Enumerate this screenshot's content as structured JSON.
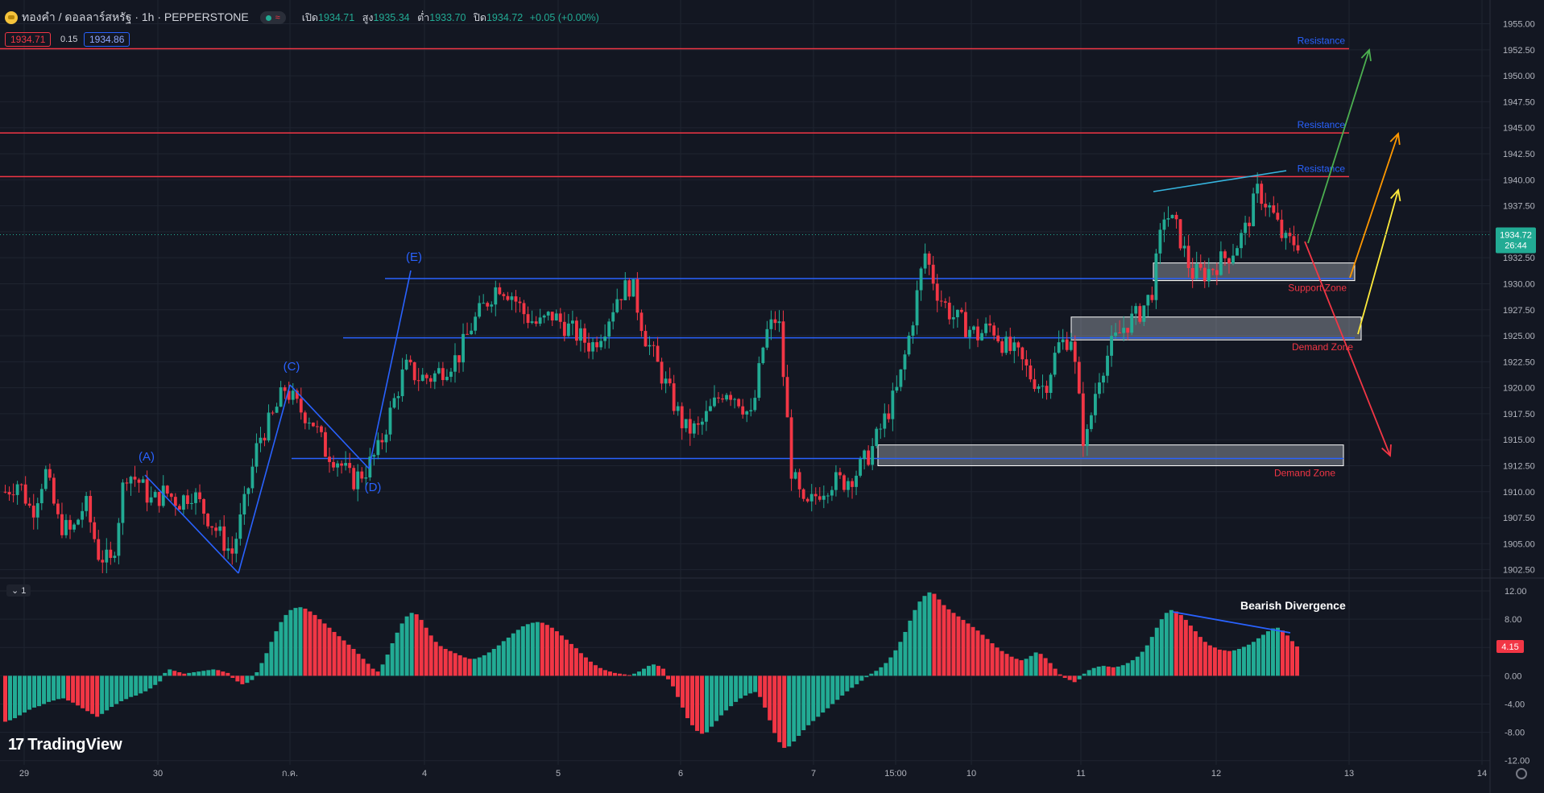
{
  "header": {
    "symbol": "ทองคำ / ดอลลาร์สหรัฐ · 1h · PEPPERSTONE",
    "open_label": "เปิด",
    "open": "1934.71",
    "high_label": "สูง",
    "high": "1935.34",
    "low_label": "ต่ำ",
    "low": "1933.70",
    "close_label": "ปิด",
    "close": "1934.72",
    "change": "+0.05 (+0.00%)",
    "bid": "1934.71",
    "spread": "0.15",
    "ask": "1934.86"
  },
  "pane_toggle": "⌄ 1",
  "logo_text": "TradingView",
  "colors": {
    "bull": "#22ab94",
    "bear": "#f23645",
    "background": "#131722",
    "grid": "#1f2430"
  },
  "chart_data": [
    {
      "type": "candlestick",
      "symbol": "XAUUSD",
      "timeframe": "1h",
      "x_ticks": [
        "29",
        "30",
        "ก.ค.",
        "4",
        "5",
        "6",
        "7",
        "15:00",
        "10",
        "11",
        "12",
        "13",
        "14"
      ],
      "y_ticks": [
        "1955.00",
        "1952.50",
        "1950.00",
        "1947.50",
        "1945.00",
        "1942.50",
        "1940.00",
        "1937.50",
        "1935.00",
        "1932.50",
        "1930.00",
        "1927.50",
        "1925.00",
        "1922.50",
        "1920.00",
        "1917.50",
        "1915.00",
        "1912.50",
        "1910.00",
        "1907.50",
        "1905.00",
        "1902.50"
      ],
      "ylim": [
        1901.7,
        1956.9
      ],
      "last_price": "1934.72",
      "countdown": "26:44",
      "approx_close_path": [
        1910,
        1911,
        1908,
        1912,
        1907,
        1906,
        1909,
        1904,
        1903,
        1912,
        1911,
        1909,
        1910,
        1909,
        1910,
        1908,
        1906,
        1904,
        1909,
        1915,
        1917,
        1920,
        1918,
        1917,
        1914,
        1913,
        1911,
        1912,
        1914,
        1918,
        1922,
        1921,
        1921,
        1922,
        1923,
        1926,
        1928,
        1930,
        1929,
        1927,
        1926,
        1927,
        1926,
        1925,
        1924,
        1926,
        1929,
        1930,
        1925,
        1922,
        1919,
        1916,
        1916,
        1918,
        1920,
        1919,
        1917,
        1925,
        1927,
        1912,
        1908,
        1910,
        1911,
        1911,
        1912,
        1914,
        1917,
        1920,
        1926,
        1933,
        1929,
        1927,
        1926,
        1925,
        1926,
        1924,
        1923,
        1921,
        1920,
        1924,
        1925,
        1914,
        1921,
        1924,
        1926,
        1927,
        1929,
        1937,
        1935,
        1931,
        1931,
        1932,
        1933,
        1935,
        1939,
        1937,
        1934,
        1934
      ],
      "annotations": {
        "resistance_levels": [
          1952.6,
          1944.5,
          1940.3
        ],
        "resistance_labels": [
          "Resistance",
          "Resistance",
          "Resistance"
        ],
        "support_zone": {
          "label": "Support Zone",
          "range": [
            1930.3,
            1932.0
          ]
        },
        "demand_zones": [
          {
            "label": "Demand Zone",
            "range": [
              1924.6,
              1926.8
            ]
          },
          {
            "label": "Demand Zone",
            "range": [
              1912.5,
              1914.5
            ]
          }
        ],
        "horizontal_lines": [
          1930.5,
          1924.8,
          1913.2
        ],
        "wave_labels": [
          "(A)",
          "(C)",
          "(D)",
          "(E)"
        ]
      }
    },
    {
      "type": "bar",
      "name": "Histogram oscillator",
      "y_ticks": [
        "12.00",
        "8.00",
        "4.00",
        "0.00",
        "-4.00",
        "-8.00",
        "-12.00"
      ],
      "ylim": [
        -12.6,
        13.6
      ],
      "last_value": "4.15",
      "annotation": "Bearish Divergence",
      "values": [
        -6.5,
        -6.3,
        -6,
        -5.6,
        -5.2,
        -4.8,
        -4.5,
        -4.3,
        -4.0,
        -3.7,
        -3.5,
        -3.3,
        -3.2,
        -3.5,
        -3.8,
        -4.2,
        -4.6,
        -5.0,
        -5.4,
        -5.8,
        -5.4,
        -4.9,
        -4.4,
        -4.0,
        -3.6,
        -3.3,
        -3.0,
        -2.8,
        -2.5,
        -2.2,
        -1.8,
        -1.3,
        -0.8,
        0.4,
        0.9,
        0.7,
        0.5,
        0.3,
        0.4,
        0.5,
        0.6,
        0.7,
        0.8,
        0.9,
        0.8,
        0.6,
        0.4,
        -0.3,
        -0.8,
        -1.2,
        -1.0,
        -0.6,
        0.5,
        1.8,
        3.2,
        4.8,
        6.3,
        7.6,
        8.6,
        9.3,
        9.6,
        9.7,
        9.5,
        9.1,
        8.6,
        8.0,
        7.4,
        6.8,
        6.2,
        5.6,
        5.0,
        4.4,
        3.8,
        3.1,
        2.4,
        1.7,
        1.0,
        0.6,
        1.6,
        3.0,
        4.6,
        6.1,
        7.4,
        8.4,
        8.9,
        8.7,
        7.9,
        6.8,
        5.7,
        4.8,
        4.2,
        3.8,
        3.5,
        3.2,
        2.9,
        2.6,
        2.4,
        2.4,
        2.6,
        2.9,
        3.3,
        3.8,
        4.3,
        4.9,
        5.4,
        6.0,
        6.5,
        7.0,
        7.3,
        7.5,
        7.6,
        7.5,
        7.2,
        6.8,
        6.3,
        5.7,
        5.1,
        4.5,
        3.9,
        3.2,
        2.6,
        2.0,
        1.5,
        1.1,
        0.8,
        0.6,
        0.4,
        0.3,
        0.2,
        0.1,
        0.3,
        0.6,
        1.0,
        1.4,
        1.6,
        1.4,
        1.0,
        -0.5,
        -1.5,
        -3.0,
        -4.5,
        -6.0,
        -7.0,
        -7.8,
        -8.2,
        -8.0,
        -7.2,
        -6.4,
        -5.6,
        -4.9,
        -4.3,
        -3.7,
        -3.2,
        -2.8,
        -2.5,
        -2.3,
        -3.0,
        -4.5,
        -6.3,
        -8.1,
        -9.4,
        -10.2,
        -10.0,
        -9.3,
        -8.5,
        -7.7,
        -7.0,
        -6.4,
        -5.8,
        -5.2,
        -4.6,
        -4.0,
        -3.4,
        -2.8,
        -2.2,
        -1.7,
        -1.2,
        -0.7,
        -0.2,
        0.3,
        0.7,
        1.2,
        1.8,
        2.6,
        3.6,
        4.8,
        6.2,
        7.8,
        9.3,
        10.5,
        11.3,
        11.8,
        11.6,
        10.8,
        10.0,
        9.4,
        8.9,
        8.4,
        7.9,
        7.4,
        6.9,
        6.4,
        5.8,
        5.2,
        4.6,
        4.0,
        3.5,
        3.1,
        2.7,
        2.4,
        2.2,
        2.4,
        2.8,
        3.3,
        3.1,
        2.5,
        1.8,
        1.0,
        0.2,
        -0.3,
        -0.6,
        -0.9,
        -0.5,
        0.3,
        0.8,
        1.1,
        1.3,
        1.4,
        1.3,
        1.2,
        1.3,
        1.5,
        1.8,
        2.2,
        2.7,
        3.4,
        4.3,
        5.5,
        6.8,
        8.0,
        8.9,
        9.3,
        9.1,
        8.6,
        7.9,
        7.1,
        6.3,
        5.5,
        4.8,
        4.3,
        4.0,
        3.7,
        3.6,
        3.5,
        3.6,
        3.8,
        4.1,
        4.4,
        4.8,
        5.3,
        5.8,
        6.3,
        6.7,
        6.8,
        6.4,
        5.7,
        4.9,
        4.15
      ],
      "divergence_line": "down-sloping over the last peak"
    }
  ]
}
